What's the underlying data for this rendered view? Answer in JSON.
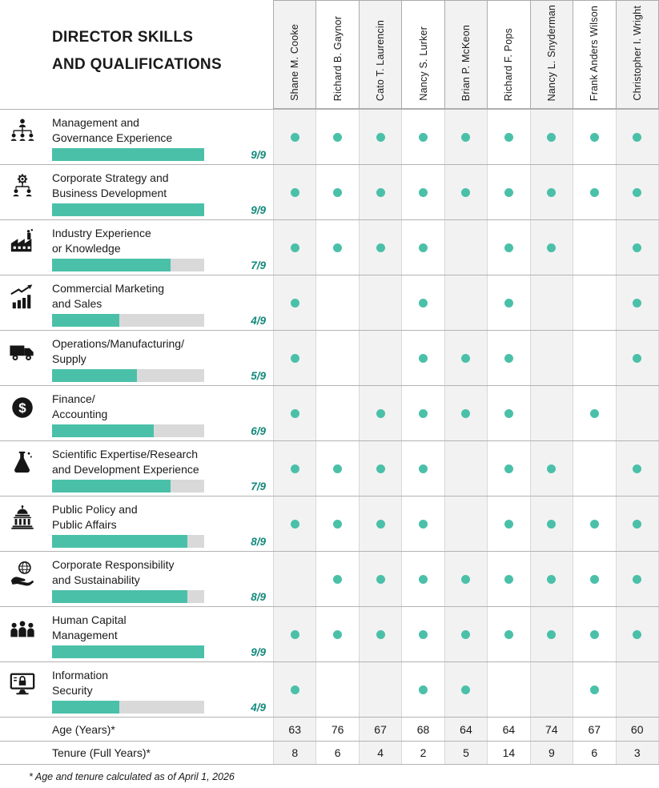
{
  "title": {
    "line1": "DIRECTOR SKILLS",
    "line2": "AND QUALIFICATIONS"
  },
  "chart_data": {
    "type": "table",
    "title": "Director Skills and Qualifications",
    "columns": [
      "Shane M. Cooke",
      "Richard B. Gaynor",
      "Cato T. Laurencin",
      "Nancy S. Lurker",
      "Brian P. McKeon",
      "Richard F. Pops",
      "Nancy L. Snyderman",
      "Frank Anders Wilson",
      "Christopher I. Wright"
    ],
    "skills": [
      {
        "icon": "org-chart-icon",
        "label_lines": [
          "Management and",
          "Governance Experience"
        ],
        "count": 9,
        "total": 9,
        "ratio": "9/9",
        "marks": [
          1,
          1,
          1,
          1,
          1,
          1,
          1,
          1,
          1
        ]
      },
      {
        "icon": "strategy-gear-icon",
        "label_lines": [
          "Corporate Strategy and",
          "Business Development"
        ],
        "count": 9,
        "total": 9,
        "ratio": "9/9",
        "marks": [
          1,
          1,
          1,
          1,
          1,
          1,
          1,
          1,
          1
        ]
      },
      {
        "icon": "factory-icon",
        "label_lines": [
          "Industry Experience",
          "or Knowledge"
        ],
        "count": 7,
        "total": 9,
        "ratio": "7/9",
        "marks": [
          1,
          1,
          1,
          1,
          0,
          1,
          1,
          0,
          1
        ]
      },
      {
        "icon": "marketing-chart-icon",
        "label_lines": [
          "Commercial Marketing",
          "and Sales"
        ],
        "count": 4,
        "total": 9,
        "ratio": "4/9",
        "marks": [
          1,
          0,
          0,
          1,
          0,
          1,
          0,
          0,
          1
        ]
      },
      {
        "icon": "truck-icon",
        "label_lines": [
          "Operations/Manufacturing/",
          "Supply"
        ],
        "count": 5,
        "total": 9,
        "ratio": "5/9",
        "marks": [
          1,
          0,
          0,
          1,
          1,
          1,
          0,
          0,
          1
        ]
      },
      {
        "icon": "dollar-icon",
        "label_lines": [
          "Finance/",
          "Accounting"
        ],
        "count": 6,
        "total": 9,
        "ratio": "6/9",
        "marks": [
          1,
          0,
          1,
          1,
          1,
          1,
          0,
          1,
          0
        ]
      },
      {
        "icon": "flask-icon",
        "label_lines": [
          "Scientific Expertise/Research",
          "and Development Experience"
        ],
        "count": 7,
        "total": 9,
        "ratio": "7/9",
        "marks": [
          1,
          1,
          1,
          1,
          0,
          1,
          1,
          0,
          1
        ]
      },
      {
        "icon": "government-building-icon",
        "label_lines": [
          "Public Policy and",
          "Public Affairs"
        ],
        "count": 8,
        "total": 9,
        "ratio": "8/9",
        "marks": [
          1,
          1,
          1,
          1,
          0,
          1,
          1,
          1,
          1
        ]
      },
      {
        "icon": "sustainability-hand-globe-icon",
        "label_lines": [
          "Corporate Responsibility",
          "and Sustainability"
        ],
        "count": 8,
        "total": 9,
        "ratio": "8/9",
        "marks": [
          0,
          1,
          1,
          1,
          1,
          1,
          1,
          1,
          1
        ]
      },
      {
        "icon": "people-icon",
        "label_lines": [
          "Human Capital",
          "Management"
        ],
        "count": 9,
        "total": 9,
        "ratio": "9/9",
        "marks": [
          1,
          1,
          1,
          1,
          1,
          1,
          1,
          1,
          1
        ]
      },
      {
        "icon": "security-monitor-icon",
        "label_lines": [
          "Information",
          "Security"
        ],
        "count": 4,
        "total": 9,
        "ratio": "4/9",
        "marks": [
          1,
          0,
          0,
          1,
          1,
          0,
          0,
          1,
          0
        ]
      }
    ],
    "age_row": {
      "label": "Age (Years)*",
      "values": [
        63,
        76,
        67,
        68,
        64,
        64,
        74,
        67,
        60
      ]
    },
    "tenure_row": {
      "label": "Tenure (Full Years)*",
      "values": [
        8,
        6,
        4,
        2,
        5,
        14,
        9,
        6,
        3
      ]
    }
  },
  "footnote": "* Age and tenure calculated as of April 1, 2026",
  "colors": {
    "accent": "#4BC0A9",
    "bar_background": "#D9D9D9",
    "ratio_text": "#12897B",
    "column_stripe": "#F2F2F2",
    "icon": "#161616",
    "text": "#1A1A1A"
  }
}
